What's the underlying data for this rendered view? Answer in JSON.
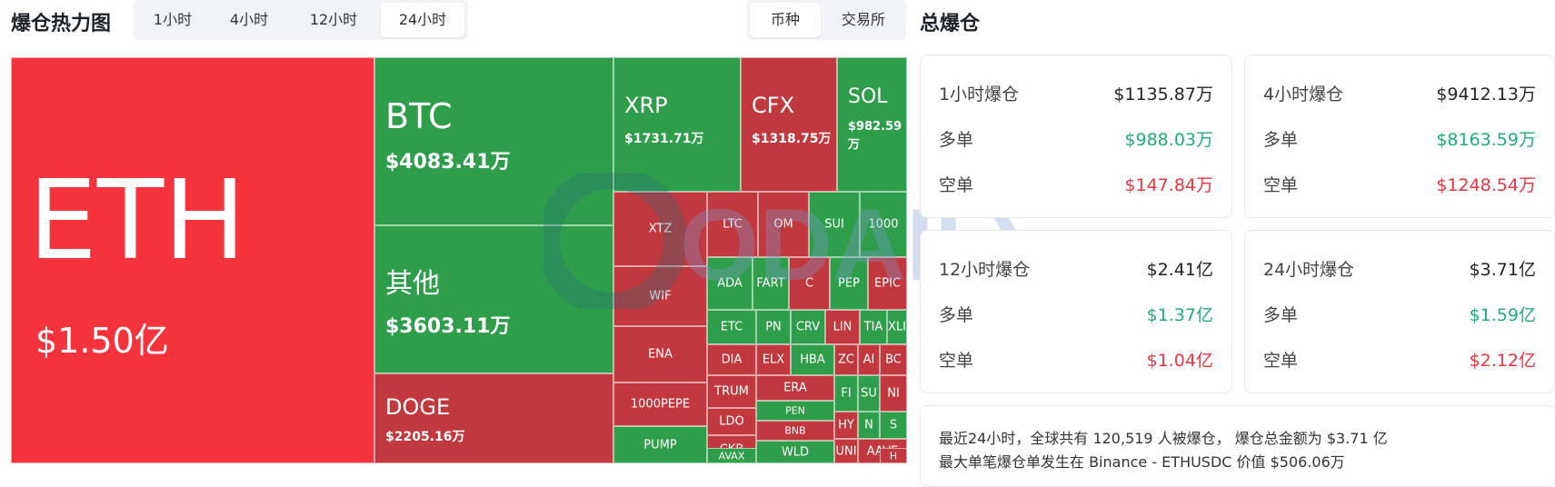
{
  "header": {
    "title": "爆仓热力图",
    "time_tabs": [
      {
        "label": "1小时"
      },
      {
        "label": "4小时"
      },
      {
        "label": "12小时"
      },
      {
        "label": "24小时"
      }
    ],
    "view_tabs": [
      {
        "label": "币种"
      },
      {
        "label": "交易所"
      }
    ],
    "active_time_tab": "24小时",
    "active_view_tab": "币种"
  },
  "colors": {
    "bright_red": "#f5333d",
    "red": "#c1383e",
    "green": "#2e9e4b",
    "long_green": "#1fae7a",
    "short_red": "#f0343f"
  },
  "treemap": {
    "tiles": [
      {
        "sym": "ETH",
        "val": "$1.50亿"
      },
      {
        "sym": "BTC",
        "val": "$4083.41万"
      },
      {
        "sym": "其他",
        "val": "$3603.11万"
      },
      {
        "sym": "DOGE",
        "val": "$2205.16万"
      },
      {
        "sym": "XRP",
        "val": "$1731.71万"
      },
      {
        "sym": "CFX",
        "val": "$1318.75万"
      },
      {
        "sym": "SOL",
        "val": "$982.59万"
      },
      {
        "sym": "XTZ"
      },
      {
        "sym": "WIF"
      },
      {
        "sym": "ENA"
      },
      {
        "sym": "1000PEPE"
      },
      {
        "sym": "PUMP"
      },
      {
        "sym": "LTC"
      },
      {
        "sym": "OM"
      },
      {
        "sym": "SUI"
      },
      {
        "sym": "1000"
      },
      {
        "sym": "ADA"
      },
      {
        "sym": "FART"
      },
      {
        "sym": "C"
      },
      {
        "sym": "PEP"
      },
      {
        "sym": "EPIC"
      },
      {
        "sym": "ETC"
      },
      {
        "sym": "PN"
      },
      {
        "sym": "CRV"
      },
      {
        "sym": "LIN"
      },
      {
        "sym": "TIA"
      },
      {
        "sym": "XLI"
      },
      {
        "sym": "DIA"
      },
      {
        "sym": "ELX"
      },
      {
        "sym": "HBA"
      },
      {
        "sym": "ZC"
      },
      {
        "sym": "AI"
      },
      {
        "sym": "BC"
      },
      {
        "sym": "TRUM"
      },
      {
        "sym": "ERA"
      },
      {
        "sym": "PEN"
      },
      {
        "sym": "FI"
      },
      {
        "sym": "SU"
      },
      {
        "sym": "NI"
      },
      {
        "sym": "LDO"
      },
      {
        "sym": "BNB"
      },
      {
        "sym": "WLD"
      },
      {
        "sym": "HY"
      },
      {
        "sym": "N"
      },
      {
        "sym": "S"
      },
      {
        "sym": "CKB"
      },
      {
        "sym": "UNI"
      },
      {
        "sym": "AVAX"
      },
      {
        "sym": "AAVE"
      },
      {
        "sym": "SP"
      },
      {
        "sym": "H"
      }
    ]
  },
  "panel": {
    "title": "总爆仓",
    "cards": [
      {
        "title": "1小时爆仓",
        "total": "$1135.87万",
        "long_label": "多单",
        "long": "$988.03万",
        "short_label": "空单",
        "short": "$147.84万"
      },
      {
        "title": "4小时爆仓",
        "total": "$9412.13万",
        "long_label": "多单",
        "long": "$8163.59万",
        "short_label": "空单",
        "short": "$1248.54万"
      },
      {
        "title": "12小时爆仓",
        "total": "$2.41亿",
        "long_label": "多单",
        "long": "$1.37亿",
        "short_label": "空单",
        "short": "$1.04亿"
      },
      {
        "title": "24小时爆仓",
        "total": "$3.71亿",
        "long_label": "多单",
        "long": "$1.59亿",
        "short_label": "空单",
        "short": "$2.12亿"
      }
    ],
    "summary_line1": "最近24小时，全球共有 120,519 人被爆仓， 爆仓总金额为 $3.71 亿",
    "summary_line2": "最大单笔爆仓单发生在 Binance - ETHUSDC 价值 $506.06万"
  },
  "watermark": {
    "text": "ODAILY"
  }
}
